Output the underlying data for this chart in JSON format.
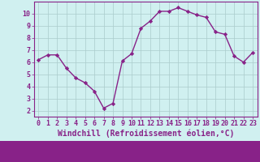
{
  "x": [
    0,
    1,
    2,
    3,
    4,
    5,
    6,
    7,
    8,
    9,
    10,
    11,
    12,
    13,
    14,
    15,
    16,
    17,
    18,
    19,
    20,
    21,
    22,
    23
  ],
  "y": [
    6.2,
    6.6,
    6.6,
    5.5,
    4.7,
    4.3,
    3.6,
    2.2,
    2.6,
    6.1,
    6.7,
    8.8,
    9.4,
    10.2,
    10.2,
    10.5,
    10.2,
    9.9,
    9.7,
    8.5,
    8.3,
    6.5,
    6.0,
    6.8
  ],
  "line_color": "#882288",
  "marker": "D",
  "marker_size": 2.2,
  "linewidth": 1.0,
  "xlabel": "Windchill (Refroidissement éolien,°C)",
  "xlabel_fontsize": 7.0,
  "xlim": [
    -0.5,
    23.5
  ],
  "ylim": [
    1.5,
    11.0
  ],
  "yticks": [
    2,
    3,
    4,
    5,
    6,
    7,
    8,
    9,
    10
  ],
  "xticks": [
    0,
    1,
    2,
    3,
    4,
    5,
    6,
    7,
    8,
    9,
    10,
    11,
    12,
    13,
    14,
    15,
    16,
    17,
    18,
    19,
    20,
    21,
    22,
    23
  ],
  "background_color": "#d0f0f0",
  "grid_color": "#aacccc",
  "line_purple": "#882288",
  "tick_fontsize": 6.0,
  "bottom_bar_color": "#882288",
  "bottom_bar_height": 0.13
}
